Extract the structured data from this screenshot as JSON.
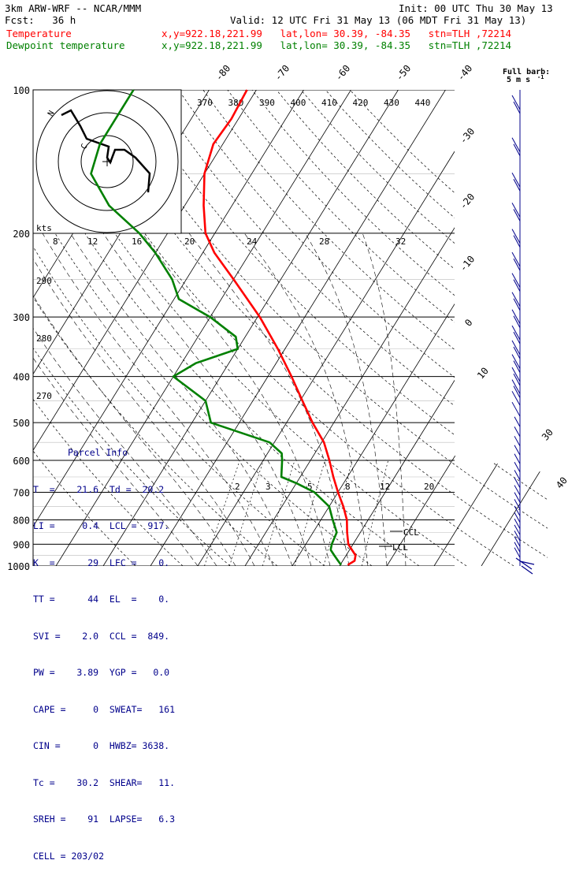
{
  "header": {
    "model": "3km ARW-WRF -- NCAR/MMM",
    "init": "Init: 00 UTC Thu 30 May 13",
    "fcst": "Fcst:   36 h",
    "valid": "Valid: 12 UTC Fri 31 May 13 (06 MDT Fri 31 May 13)",
    "temp_label": "Temperature",
    "dew_label": "Dewpoint temperature",
    "temp_info": "x,y=922.18,221.99   lat,lon= 30.39, -84.35   stn=TLH ,72214",
    "dew_info": "x,y=922.18,221.99   lat,lon= 30.39, -84.35   stn=TLH ,72214"
  },
  "colors": {
    "temperature": "#ff0000",
    "dewpoint": "#008000",
    "barbs": "#00008b",
    "parcel": "#00008b",
    "axes": "#000000"
  },
  "barb_key": {
    "line1": "Full barb:",
    "line2": "5 m s",
    "exp": "-1"
  },
  "hodograph": {
    "kts_label": "kts",
    "ring_labels": [
      "N",
      "C"
    ]
  },
  "parcel_info": {
    "title": "Parcel Info",
    "rows": [
      "T  =    21.6  Td =  20.2",
      "LI =     0.4  LCL =  917.",
      "K  =      29  LFC =    0.",
      "TT =      44  EL  =    0.",
      "SVI =    2.0  CCL =  849.",
      "PW =    3.89  YGP =   0.0",
      "CAPE =     0  SWEAT=   161",
      "CIN =      0  HWBZ= 3638.",
      "Tc =    30.2  SHEAR=   11.",
      "SREH =    91  LAPSE=   6.3",
      "CELL = 203/02"
    ]
  },
  "chart_data": {
    "type": "line",
    "chart_kind": "Skew-T log-P sounding",
    "y_axis": "pressure (hPa), logarithmic",
    "pressure_ticks": [
      100,
      200,
      300,
      400,
      500,
      600,
      700,
      800,
      900,
      1000
    ],
    "isotherm_labels": [
      "-80",
      "-70",
      "-60",
      "-50",
      "-40",
      "-30",
      "-20",
      "-10",
      "0",
      "10",
      "30",
      "40"
    ],
    "theta_labels": [
      "370",
      "380",
      "390",
      "400",
      "410",
      "420",
      "430",
      "440"
    ],
    "mixing_ratio_labels": [
      "2",
      "3",
      "5",
      "8",
      "12",
      "20"
    ],
    "mixing_ratio_labels_upper": [
      "8",
      "12",
      "16",
      "20",
      "24",
      "28",
      "32"
    ],
    "dry_adiabat_side_labels": [
      "290",
      "280",
      "270"
    ],
    "lcl_labels": [
      "CCL",
      "LCL"
    ],
    "series": [
      {
        "name": "Temperature",
        "points": [
          [
            995,
            21.6
          ],
          [
            975,
            22.5
          ],
          [
            950,
            22
          ],
          [
            925,
            20.5
          ],
          [
            900,
            19
          ],
          [
            850,
            17.2
          ],
          [
            800,
            15.5
          ],
          [
            750,
            13
          ],
          [
            700,
            10
          ],
          [
            650,
            7
          ],
          [
            600,
            4
          ],
          [
            550,
            0.5
          ],
          [
            500,
            -4.5
          ],
          [
            450,
            -9.5
          ],
          [
            400,
            -15
          ],
          [
            350,
            -21.5
          ],
          [
            300,
            -29.5
          ],
          [
            250,
            -40
          ],
          [
            220,
            -47.5
          ],
          [
            200,
            -52
          ],
          [
            175,
            -56
          ],
          [
            150,
            -60
          ],
          [
            130,
            -62
          ],
          [
            115,
            -61.5
          ],
          [
            100,
            -62
          ]
        ]
      },
      {
        "name": "Dewpoint temperature",
        "points": [
          [
            995,
            20.2
          ],
          [
            975,
            19
          ],
          [
            950,
            17.5
          ],
          [
            925,
            16
          ],
          [
            900,
            15.5
          ],
          [
            850,
            15
          ],
          [
            800,
            12.5
          ],
          [
            750,
            10
          ],
          [
            700,
            5
          ],
          [
            670,
            0
          ],
          [
            650,
            -4
          ],
          [
            600,
            -6
          ],
          [
            580,
            -7
          ],
          [
            550,
            -11
          ],
          [
            500,
            -26
          ],
          [
            450,
            -30
          ],
          [
            400,
            -40
          ],
          [
            375,
            -37
          ],
          [
            350,
            -30
          ],
          [
            330,
            -32
          ],
          [
            300,
            -40
          ],
          [
            275,
            -49
          ],
          [
            250,
            -53
          ],
          [
            220,
            -60
          ],
          [
            200,
            -66
          ],
          [
            175,
            -76
          ],
          [
            150,
            -84
          ],
          [
            130,
            -86
          ],
          [
            115,
            -86
          ],
          [
            100,
            -86
          ]
        ]
      }
    ]
  }
}
